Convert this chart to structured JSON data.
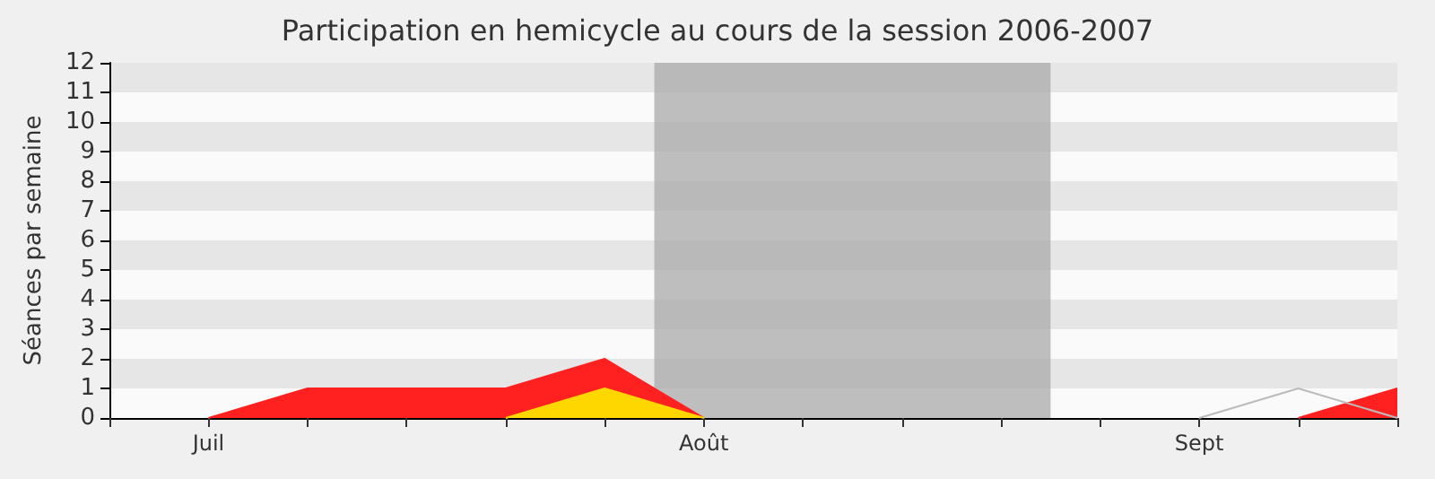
{
  "chart_data": {
    "type": "area",
    "title": "Participation en hemicycle au cours de la session 2006-2007",
    "ylabel": "Séances par semaine",
    "categories": [
      null,
      "Juil",
      null,
      null,
      null,
      null,
      "Août",
      null,
      null,
      null,
      null,
      "Sept",
      null,
      null
    ],
    "series": [
      {
        "color": "#ff2020",
        "values": [
          null,
          0,
          1,
          1,
          1,
          2,
          0,
          null,
          null,
          null,
          null,
          null,
          0,
          1
        ]
      },
      {
        "color": "#ffd700",
        "values": [
          null,
          null,
          null,
          null,
          0,
          1,
          0,
          null,
          null,
          null,
          null,
          null,
          null,
          null
        ]
      },
      {
        "type": "line",
        "color": "#bbbbbb",
        "values": [
          null,
          null,
          null,
          null,
          null,
          null,
          null,
          null,
          null,
          null,
          null,
          0,
          1,
          0
        ]
      }
    ],
    "ylim": [
      0,
      12
    ],
    "yticks": [
      0,
      1,
      2,
      3,
      4,
      5,
      6,
      7,
      8,
      9,
      10,
      11,
      12
    ],
    "marker": "none"
  }
}
